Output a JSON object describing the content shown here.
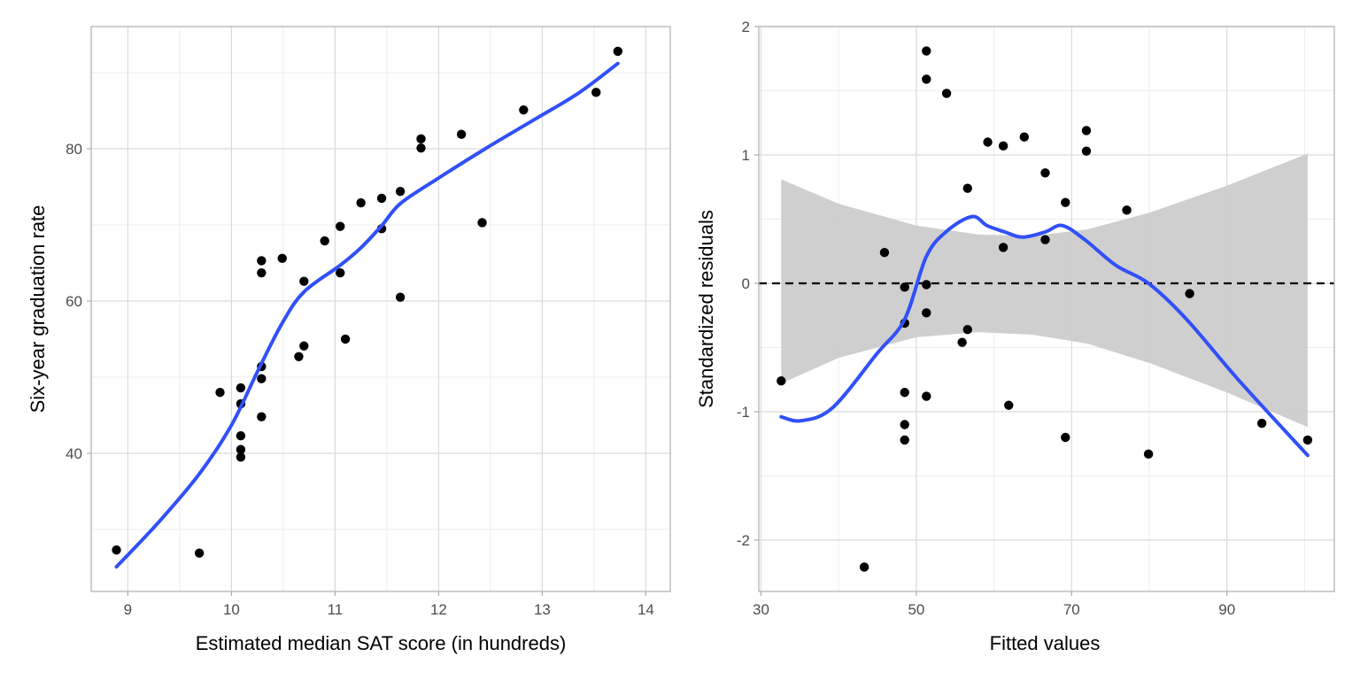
{
  "chart_data": [
    {
      "type": "scatter",
      "xlabel": "Estimated median SAT score (in hundreds)",
      "ylabel": "Six-year graduation rate",
      "xlim": [
        8.7,
        14.3
      ],
      "ylim": [
        22,
        96
      ],
      "x_ticks": [
        9,
        10,
        11,
        12,
        13,
        14
      ],
      "y_ticks": [
        40,
        60,
        80
      ],
      "grid": true,
      "colors": {
        "points": "#000000",
        "smooth": "#3050f8"
      },
      "points": [
        [
          8.89,
          27.3
        ],
        [
          9.69,
          26.9
        ],
        [
          9.89,
          48.0
        ],
        [
          10.09,
          48.6
        ],
        [
          10.09,
          46.5
        ],
        [
          10.09,
          42.3
        ],
        [
          10.09,
          40.5
        ],
        [
          10.09,
          39.5
        ],
        [
          10.29,
          65.3
        ],
        [
          10.29,
          63.7
        ],
        [
          10.29,
          51.4
        ],
        [
          10.29,
          49.8
        ],
        [
          10.29,
          44.8
        ],
        [
          10.49,
          65.6
        ],
        [
          10.7,
          62.6
        ],
        [
          10.7,
          54.1
        ],
        [
          10.65,
          52.7
        ],
        [
          10.9,
          67.9
        ],
        [
          11.05,
          69.8
        ],
        [
          11.05,
          63.7
        ],
        [
          11.1,
          55.0
        ],
        [
          11.25,
          72.9
        ],
        [
          11.45,
          73.5
        ],
        [
          11.45,
          69.5
        ],
        [
          11.63,
          74.4
        ],
        [
          11.63,
          60.5
        ],
        [
          11.83,
          81.3
        ],
        [
          11.83,
          80.1
        ],
        [
          12.22,
          81.9
        ],
        [
          12.42,
          70.3
        ],
        [
          12.82,
          85.1
        ],
        [
          13.52,
          87.4
        ],
        [
          13.73,
          92.8
        ]
      ],
      "smooth": [
        [
          8.89,
          25.1
        ],
        [
          9.3,
          31.0
        ],
        [
          9.69,
          37.3
        ],
        [
          10.0,
          43.7
        ],
        [
          10.25,
          50.7
        ],
        [
          10.49,
          57.1
        ],
        [
          10.7,
          61.2
        ],
        [
          11.05,
          64.7
        ],
        [
          11.25,
          67.0
        ],
        [
          11.45,
          69.9
        ],
        [
          11.63,
          72.8
        ],
        [
          11.97,
          75.9
        ],
        [
          12.45,
          80.0
        ],
        [
          12.92,
          83.8
        ],
        [
          13.35,
          87.3
        ],
        [
          13.73,
          91.2
        ]
      ]
    },
    {
      "type": "scatter",
      "xlabel": "Fitted values",
      "ylabel": "Standardized residuals",
      "xlim": [
        30,
        104
      ],
      "ylim": [
        -2.4,
        2.0
      ],
      "x_ticks": [
        30,
        50,
        70,
        90
      ],
      "y_ticks": [
        2,
        1,
        0,
        -1,
        -2
      ],
      "y_tick_labels": [
        "2",
        "1",
        "0",
        "-1",
        "-2"
      ],
      "grid": true,
      "reference_line": {
        "y": 0,
        "style": "dashed"
      },
      "colors": {
        "points": "#000000",
        "smooth": "#3050f8",
        "band": "#cccccc"
      },
      "points": [
        [
          32.6,
          -0.76
        ],
        [
          43.3,
          -2.21
        ],
        [
          45.9,
          0.24
        ],
        [
          48.5,
          -0.03
        ],
        [
          48.5,
          -0.31
        ],
        [
          48.5,
          -0.85
        ],
        [
          48.5,
          -1.1
        ],
        [
          48.5,
          -1.22
        ],
        [
          51.3,
          1.81
        ],
        [
          51.3,
          1.59
        ],
        [
          51.3,
          -0.01
        ],
        [
          51.3,
          -0.23
        ],
        [
          51.3,
          -0.88
        ],
        [
          53.9,
          1.48
        ],
        [
          55.9,
          -0.46
        ],
        [
          56.6,
          0.74
        ],
        [
          56.6,
          -0.36
        ],
        [
          59.2,
          1.1
        ],
        [
          61.2,
          1.07
        ],
        [
          61.2,
          0.28
        ],
        [
          61.9,
          -0.95
        ],
        [
          63.9,
          1.14
        ],
        [
          66.6,
          0.86
        ],
        [
          66.6,
          0.34
        ],
        [
          69.2,
          0.63
        ],
        [
          69.2,
          -1.2
        ],
        [
          71.9,
          1.19
        ],
        [
          71.9,
          1.03
        ],
        [
          77.1,
          0.57
        ],
        [
          79.9,
          -1.33
        ],
        [
          85.2,
          -0.08
        ],
        [
          94.5,
          -1.09
        ],
        [
          100.4,
          -1.22
        ]
      ],
      "smooth": [
        [
          32.6,
          -1.04
        ],
        [
          35.2,
          -1.07
        ],
        [
          39.2,
          -0.97
        ],
        [
          44.9,
          -0.55
        ],
        [
          48.5,
          -0.28
        ],
        [
          51.3,
          0.21
        ],
        [
          54.0,
          0.41
        ],
        [
          57.2,
          0.52
        ],
        [
          59.1,
          0.45
        ],
        [
          61.4,
          0.4
        ],
        [
          63.7,
          0.36
        ],
        [
          66.6,
          0.4
        ],
        [
          68.8,
          0.45
        ],
        [
          71.7,
          0.34
        ],
        [
          75.7,
          0.14
        ],
        [
          79.9,
          0.0
        ],
        [
          84.8,
          -0.28
        ],
        [
          91.6,
          -0.76
        ],
        [
          100.4,
          -1.34
        ]
      ],
      "band_upper": [
        [
          32.6,
          0.81
        ],
        [
          40,
          0.62
        ],
        [
          50,
          0.45
        ],
        [
          58,
          0.38
        ],
        [
          65,
          0.37
        ],
        [
          72,
          0.42
        ],
        [
          80,
          0.55
        ],
        [
          90,
          0.76
        ],
        [
          100.4,
          1.01
        ]
      ],
      "band_lower": [
        [
          32.6,
          -0.78
        ],
        [
          40,
          -0.58
        ],
        [
          50,
          -0.42
        ],
        [
          58,
          -0.38
        ],
        [
          65,
          -0.4
        ],
        [
          72,
          -0.47
        ],
        [
          80,
          -0.62
        ],
        [
          90,
          -0.85
        ],
        [
          100.4,
          -1.12
        ]
      ]
    }
  ]
}
